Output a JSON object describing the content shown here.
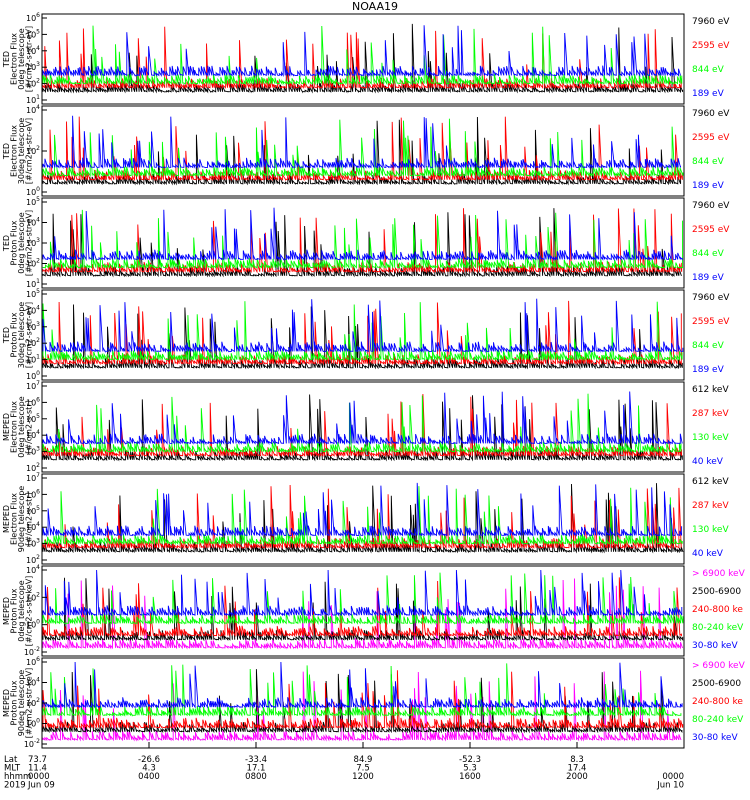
{
  "title": "NOAA19",
  "colors": {
    "black": "#000000",
    "red": "#ff0000",
    "green": "#00ff00",
    "blue": "#0000ff",
    "magenta": "#ff00ff"
  },
  "chart_data": [
    {
      "type": "line",
      "ylabel": [
        "TED",
        "Electron Flux",
        "0deg telescope",
        "[#/cm2-s-str-eV]"
      ],
      "yscale": "log",
      "ytick_exponents": [
        1,
        2,
        3,
        4,
        5,
        6
      ],
      "channels": [
        {
          "name": "7960 eV",
          "color": "#000000"
        },
        {
          "name": "2595 eV",
          "color": "#ff0000"
        },
        {
          "name": "844 eV",
          "color": "#00ff00"
        },
        {
          "name": "189 eV",
          "color": "#0000ff"
        }
      ]
    },
    {
      "type": "line",
      "ylabel": [
        "TED",
        "Electron Flux",
        "30deg telescope",
        "[#/cm2-s-str-eV]"
      ],
      "yscale": "log",
      "ytick_exponents": [
        0,
        2,
        4
      ],
      "channels": [
        {
          "name": "7960 eV",
          "color": "#000000"
        },
        {
          "name": "2595 eV",
          "color": "#ff0000"
        },
        {
          "name": "844 eV",
          "color": "#00ff00"
        },
        {
          "name": "189 eV",
          "color": "#0000ff"
        }
      ]
    },
    {
      "type": "line",
      "ylabel": [
        "TED",
        "Proton Flux",
        "0deg telescope",
        "[#/cm2-s-str-eV]"
      ],
      "yscale": "log",
      "ytick_exponents": [
        1,
        2,
        3,
        4,
        5
      ],
      "channels": [
        {
          "name": "7960 eV",
          "color": "#000000"
        },
        {
          "name": "2595 eV",
          "color": "#ff0000"
        },
        {
          "name": "844 eV",
          "color": "#00ff00"
        },
        {
          "name": "189 eV",
          "color": "#0000ff"
        }
      ]
    },
    {
      "type": "line",
      "ylabel": [
        "TED",
        "Proton Flux",
        "30deg telescope",
        "[#/cm2-s-str-eV]"
      ],
      "yscale": "log",
      "ytick_exponents": [
        0,
        1,
        2,
        3,
        4,
        5
      ],
      "channels": [
        {
          "name": "7960 eV",
          "color": "#000000"
        },
        {
          "name": "2595 eV",
          "color": "#ff0000"
        },
        {
          "name": "844 eV",
          "color": "#00ff00"
        },
        {
          "name": "189 eV",
          "color": "#0000ff"
        }
      ]
    },
    {
      "type": "line",
      "ylabel": [
        "MEPED",
        "Electron Flux",
        "0deg telescope",
        "[#/cm2-s-str]"
      ],
      "yscale": "log",
      "ytick_exponents": [
        2,
        3,
        4,
        5,
        6,
        7
      ],
      "channels": [
        {
          "name": "612 keV",
          "color": "#000000"
        },
        {
          "name": "287 keV",
          "color": "#ff0000"
        },
        {
          "name": "130 keV",
          "color": "#00ff00"
        },
        {
          "name": "40 keV",
          "color": "#0000ff"
        }
      ]
    },
    {
      "type": "line",
      "ylabel": [
        "MEPED",
        "Electron Flux",
        "90deg telescope",
        "[#/cm2-s-str]"
      ],
      "yscale": "log",
      "ytick_exponents": [
        2,
        3,
        4,
        5,
        6,
        7
      ],
      "channels": [
        {
          "name": "612 keV",
          "color": "#000000"
        },
        {
          "name": "287 keV",
          "color": "#ff0000"
        },
        {
          "name": "130 keV",
          "color": "#00ff00"
        },
        {
          "name": "40 keV",
          "color": "#0000ff"
        }
      ]
    },
    {
      "type": "line",
      "ylabel": [
        "MEPED",
        "Proton Flux",
        "0deg telescope",
        "[#/cm2-s-str-keV]"
      ],
      "yscale": "log",
      "ytick_exponents": [
        -2,
        0,
        2,
        4
      ],
      "channels": [
        {
          "name": "> 6900 keV",
          "color": "#ff00ff"
        },
        {
          "name": "2500-6900",
          "color": "#000000"
        },
        {
          "name": "240-800 ke",
          "color": "#ff0000"
        },
        {
          "name": "80-240 keV",
          "color": "#00ff00"
        },
        {
          "name": "30-80 keV",
          "color": "#0000ff"
        }
      ]
    },
    {
      "type": "line",
      "ylabel": [
        "MEPED",
        "Proton Flux",
        "90deg telescope",
        "[#/cm2-s-str-keV]"
      ],
      "yscale": "log",
      "ytick_exponents": [
        -2,
        0,
        2,
        4,
        6
      ],
      "channels": [
        {
          "name": "> 6900 keV",
          "color": "#ff00ff"
        },
        {
          "name": "2500-6900",
          "color": "#000000"
        },
        {
          "name": "240-800 ke",
          "color": "#ff0000"
        },
        {
          "name": "80-240 keV",
          "color": "#00ff00"
        },
        {
          "name": "30-80 keV",
          "color": "#0000ff"
        }
      ]
    }
  ],
  "xaxis": {
    "row_labels": [
      "Lat",
      "MLT",
      "hhmm",
      "2019"
    ],
    "ticks": [
      {
        "lat": "73.7",
        "mlt": "11.4",
        "hhmm": "0000",
        "date": "Jun 09"
      },
      {
        "lat": "-26.6",
        "mlt": "4.3",
        "hhmm": "0400",
        "date": ""
      },
      {
        "lat": "-33.4",
        "mlt": "17.1",
        "hhmm": "0800",
        "date": ""
      },
      {
        "lat": "84.9",
        "mlt": "7.5",
        "hhmm": "1200",
        "date": ""
      },
      {
        "lat": "-52.3",
        "mlt": "5.3",
        "hhmm": "1600",
        "date": ""
      },
      {
        "lat": "8.3",
        "mlt": "17.4",
        "hhmm": "2000",
        "date": ""
      },
      {
        "lat": "",
        "mlt": "",
        "hhmm": "0000",
        "date": "Jun 10"
      }
    ]
  }
}
